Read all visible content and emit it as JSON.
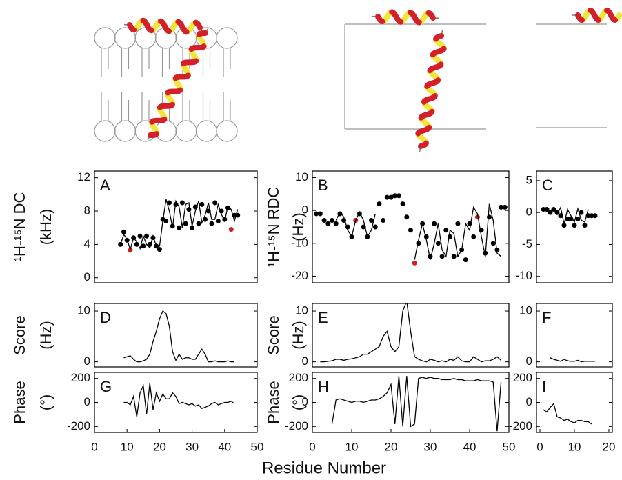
{
  "xlabel": "Residue Number",
  "chart_data": [
    {
      "type": "scatter",
      "label": "A",
      "ylabel": [
        "¹H-¹⁵N DC",
        "(kHz)"
      ],
      "xlim": [
        0,
        50
      ],
      "ylim": [
        -0.6,
        12.8
      ],
      "yticks": [
        0,
        4,
        8,
        12
      ],
      "series": [
        {
          "mode": "markers",
          "color": "#000000",
          "x": [
            8,
            9,
            10,
            12,
            13,
            14,
            15,
            16,
            17,
            18,
            19,
            20,
            21,
            22,
            23,
            24,
            25,
            26,
            27,
            28,
            29,
            30,
            31,
            32,
            33,
            34,
            35,
            36,
            37,
            38,
            39,
            40,
            41,
            43,
            44
          ],
          "values": [
            4,
            5.5,
            4.5,
            4.8,
            4,
            5,
            3.8,
            5,
            4,
            4.8,
            3.8,
            3.4,
            7,
            6.8,
            9,
            6.2,
            8.8,
            6,
            9,
            6.5,
            8.2,
            6,
            8.5,
            6.5,
            8.8,
            7,
            8,
            6.5,
            9,
            6.8,
            8,
            7,
            8.4,
            7.5,
            7.5
          ]
        },
        {
          "mode": "markers",
          "color": "#cc2222",
          "x": [
            11,
            42
          ],
          "values": [
            3.3,
            5.8
          ]
        },
        {
          "mode": "line",
          "color": "#000000",
          "x": [
            8,
            9,
            10,
            11,
            12,
            13,
            14,
            15,
            16,
            17,
            18,
            19,
            20,
            21,
            22,
            23,
            24,
            25,
            26,
            27,
            28,
            29,
            30,
            31,
            32,
            33,
            34,
            35,
            36,
            37,
            38,
            39,
            40,
            41,
            42,
            43,
            44
          ],
          "values": [
            4.0,
            5.2,
            4.6,
            3.4,
            4.8,
            4.3,
            3.5,
            5.0,
            4.0,
            3.6,
            5.0,
            3.8,
            3.8,
            6.8,
            9.4,
            8.0,
            6.0,
            9.2,
            8.5,
            6.0,
            8.8,
            9.0,
            6.2,
            8.0,
            9.2,
            6.6,
            7.5,
            9.0,
            7.0,
            7.0,
            8.8,
            7.6,
            6.8,
            8.6,
            8.2,
            6.8,
            8.2
          ]
        }
      ]
    },
    {
      "type": "scatter",
      "label": "B",
      "ylabel": [
        "¹H-¹⁵N RDC",
        "(Hz)"
      ],
      "xlim": [
        0,
        50
      ],
      "ylim": [
        -22,
        12
      ],
      "yticks": [
        -20,
        -10,
        0,
        10
      ],
      "series": [
        {
          "mode": "markers",
          "color": "#000000",
          "x": [
            1,
            2,
            3,
            4,
            5,
            6,
            7,
            8,
            9,
            10,
            12,
            13,
            14,
            15,
            16,
            17,
            18,
            19,
            20,
            21,
            22,
            23,
            24,
            25,
            27,
            28,
            29,
            30,
            31,
            32,
            33,
            34,
            35,
            36,
            37,
            38,
            39,
            40,
            41,
            43,
            44,
            45,
            46,
            47,
            48,
            49
          ],
          "values": [
            -1,
            -1,
            -3,
            -4,
            -3,
            -4,
            -1,
            -3,
            -5,
            -8,
            -1,
            -5,
            -8,
            -3,
            -5,
            2,
            -3,
            4,
            4,
            4.5,
            4.5,
            2,
            -2,
            -6,
            -10,
            -4,
            -8,
            -14,
            -4,
            -10,
            -14,
            -6,
            -8,
            -14,
            -4,
            -12,
            -15,
            -4,
            -8,
            -6,
            -13,
            -2,
            -10,
            -12,
            1,
            1
          ]
        },
        {
          "mode": "markers",
          "color": "#cc2222",
          "x": [
            11,
            26,
            42
          ],
          "values": [
            -3,
            -16,
            -2
          ]
        },
        {
          "mode": "line",
          "color": "#000000",
          "x": [
            6,
            7,
            8,
            9,
            10,
            11,
            12,
            13,
            14,
            15,
            16
          ],
          "values": [
            -3,
            -0.5,
            -2,
            -6,
            -8,
            -3,
            -0.5,
            -3,
            -8,
            -6,
            -1
          ]
        },
        {
          "mode": "line",
          "color": "#000000",
          "x": [
            26,
            27,
            28,
            29,
            30,
            31,
            32,
            33,
            34,
            35,
            36,
            37,
            38,
            39,
            40,
            41,
            42,
            43,
            44,
            45,
            46,
            47,
            48
          ],
          "values": [
            -15,
            -9,
            -4,
            -9,
            -15,
            -10,
            -4,
            -12,
            -14,
            -6,
            -7,
            -14,
            -12,
            -4,
            -6,
            1,
            -1,
            -8,
            -14,
            2,
            -3,
            -13,
            -14
          ]
        }
      ]
    },
    {
      "type": "scatter",
      "label": "C",
      "xlim": [
        -1,
        21
      ],
      "ylim": [
        -11,
        6.5
      ],
      "yticks": [
        -10,
        -5,
        0,
        5
      ],
      "series": [
        {
          "mode": "markers",
          "color": "#000000",
          "x": [
            1,
            2,
            3,
            4,
            5,
            6,
            7,
            8,
            9,
            10,
            11,
            12,
            13,
            14,
            15,
            16
          ],
          "values": [
            0.5,
            0.5,
            0,
            0.5,
            0,
            -0.5,
            -2,
            -1,
            -1,
            -2,
            -1,
            0,
            -2,
            -0.5,
            -0.5,
            -0.5
          ]
        },
        {
          "mode": "line",
          "color": "#000000",
          "x": [
            3,
            4,
            5,
            6,
            7,
            8,
            9,
            10,
            11,
            12,
            13,
            14
          ],
          "values": [
            0,
            0.5,
            -0.3,
            0.8,
            -1.8,
            0.5,
            -0.5,
            -1.5,
            0.6,
            -1.2,
            -1.5,
            0.5
          ]
        }
      ]
    },
    {
      "type": "line",
      "label": "D",
      "ylabel": [
        "Score",
        "(Hz)"
      ],
      "xlim": [
        0,
        50
      ],
      "ylim": [
        -1,
        11.5
      ],
      "yticks": [
        0,
        10
      ],
      "series": [
        {
          "mode": "line",
          "color": "#000000",
          "x": [
            9,
            10,
            11,
            12,
            13,
            14,
            15,
            16,
            17,
            18,
            19,
            20,
            21,
            22,
            23,
            24,
            25,
            26,
            27,
            28,
            29,
            30,
            31,
            32,
            33,
            34,
            35,
            36,
            37,
            38,
            39,
            40,
            41,
            42,
            43
          ],
          "values": [
            0.8,
            1,
            1.2,
            0.5,
            0,
            0,
            0.2,
            0.5,
            1.5,
            4,
            6,
            8.5,
            10,
            9.5,
            7,
            2,
            0.3,
            1.5,
            0.5,
            0.8,
            0.8,
            0.5,
            0.5,
            1.5,
            2.5,
            1.5,
            0,
            0,
            0.2,
            0,
            0,
            0,
            0.2,
            0,
            0
          ]
        }
      ]
    },
    {
      "type": "line",
      "label": "E",
      "ylabel": [
        "Score",
        "(Hz)"
      ],
      "xlim": [
        0,
        50
      ],
      "ylim": [
        -1,
        11.5
      ],
      "yticks": [
        0,
        10
      ],
      "series": [
        {
          "mode": "line",
          "color": "#000000",
          "x": [
            2,
            3,
            4,
            5,
            6,
            7,
            8,
            9,
            10,
            11,
            12,
            13,
            14,
            15,
            16,
            17,
            18,
            19,
            20,
            21,
            22,
            23,
            24,
            25,
            26,
            27,
            28,
            29,
            30,
            31,
            32,
            33,
            34,
            35,
            36,
            37,
            38,
            39,
            40,
            41,
            42,
            43,
            44,
            45,
            46,
            47,
            48
          ],
          "values": [
            0,
            0,
            0.1,
            0.2,
            0.5,
            0.5,
            0.3,
            0.5,
            0.6,
            0.8,
            1,
            1.5,
            1.5,
            2,
            2.5,
            3,
            5,
            6,
            3,
            2,
            3,
            10,
            12,
            6,
            1,
            0.5,
            0.2,
            0,
            0.5,
            0.3,
            0,
            0.2,
            0,
            0.5,
            0.3,
            1,
            0.2,
            0,
            0,
            1,
            0.5,
            0,
            0.2,
            0.2,
            0.5,
            1,
            0.3
          ]
        }
      ]
    },
    {
      "type": "line",
      "label": "F",
      "xlim": [
        -1,
        21
      ],
      "ylim": [
        -1,
        11.5
      ],
      "yticks": [
        0,
        10
      ],
      "series": [
        {
          "mode": "line",
          "color": "#000000",
          "x": [
            3,
            4,
            5,
            6,
            7,
            8,
            9,
            10,
            11,
            12,
            13,
            14,
            15,
            16
          ],
          "values": [
            0.8,
            0.5,
            0.3,
            0.1,
            0.5,
            0.2,
            0.1,
            0.1,
            0.3,
            0,
            0.1,
            0.1,
            0.1,
            0.1
          ]
        }
      ]
    },
    {
      "type": "line",
      "label": "G",
      "ylabel": [
        "Phase",
        "(°)"
      ],
      "xlim": [
        0,
        50
      ],
      "ylim": [
        -250,
        250
      ],
      "yticks": [
        -200,
        0,
        200
      ],
      "xticks": [
        0,
        10,
        20,
        30,
        40,
        50
      ],
      "series": [
        {
          "mode": "line",
          "color": "#000000",
          "x": [
            9,
            10,
            11,
            12,
            13,
            14,
            15,
            16,
            17,
            18,
            19,
            20,
            21,
            22,
            23,
            24,
            25,
            26,
            27,
            28,
            29,
            30,
            31,
            32,
            33,
            34,
            35,
            36,
            37,
            38,
            39,
            40,
            41,
            42,
            43
          ],
          "values": [
            0,
            0,
            -20,
            50,
            -120,
            80,
            140,
            -100,
            160,
            -60,
            80,
            10,
            70,
            30,
            30,
            80,
            50,
            -10,
            0,
            -10,
            -20,
            -10,
            -30,
            -20,
            -50,
            -40,
            -30,
            -10,
            0,
            -20,
            -10,
            0,
            0,
            10,
            -10
          ]
        }
      ]
    },
    {
      "type": "line",
      "label": "H",
      "ylabel": [
        "Phase",
        "(°)"
      ],
      "xlim": [
        0,
        50
      ],
      "ylim": [
        -250,
        250
      ],
      "yticks": [
        -200,
        0,
        200
      ],
      "xticks": [
        0,
        10,
        20,
        30,
        40,
        50
      ],
      "series": [
        {
          "mode": "line",
          "color": "#000000",
          "x": [
            5,
            6,
            7,
            8,
            9,
            10,
            11,
            12,
            13,
            14,
            15,
            16,
            17,
            18,
            19,
            20,
            21,
            22,
            23,
            24,
            25,
            26,
            27,
            28,
            29,
            30,
            31,
            32,
            33,
            34,
            35,
            36,
            37,
            38,
            39,
            40,
            41,
            42,
            43,
            44,
            45,
            46,
            47,
            48
          ],
          "values": [
            -180,
            20,
            30,
            20,
            10,
            0,
            10,
            10,
            0,
            10,
            20,
            20,
            30,
            50,
            80,
            150,
            -180,
            220,
            -200,
            220,
            -200,
            -180,
            200,
            210,
            200,
            210,
            200,
            200,
            190,
            190,
            190,
            200,
            190,
            190,
            180,
            180,
            180,
            190,
            180,
            180,
            180,
            170,
            -240,
            170
          ]
        }
      ]
    },
    {
      "type": "line",
      "label": "I",
      "xlim": [
        -1,
        21
      ],
      "ylim": [
        -250,
        250
      ],
      "yticks": [
        -200,
        0,
        200
      ],
      "xticks": [
        0,
        10,
        20
      ],
      "series": [
        {
          "mode": "line",
          "color": "#000000",
          "x": [
            1,
            2,
            3,
            4,
            5,
            6,
            7,
            8,
            9,
            10,
            11,
            12,
            13,
            14,
            15
          ],
          "values": [
            -60,
            -80,
            -40,
            -10,
            -120,
            -130,
            -150,
            -140,
            -160,
            -170,
            -150,
            -150,
            -160,
            -160,
            -180
          ]
        }
      ]
    }
  ]
}
